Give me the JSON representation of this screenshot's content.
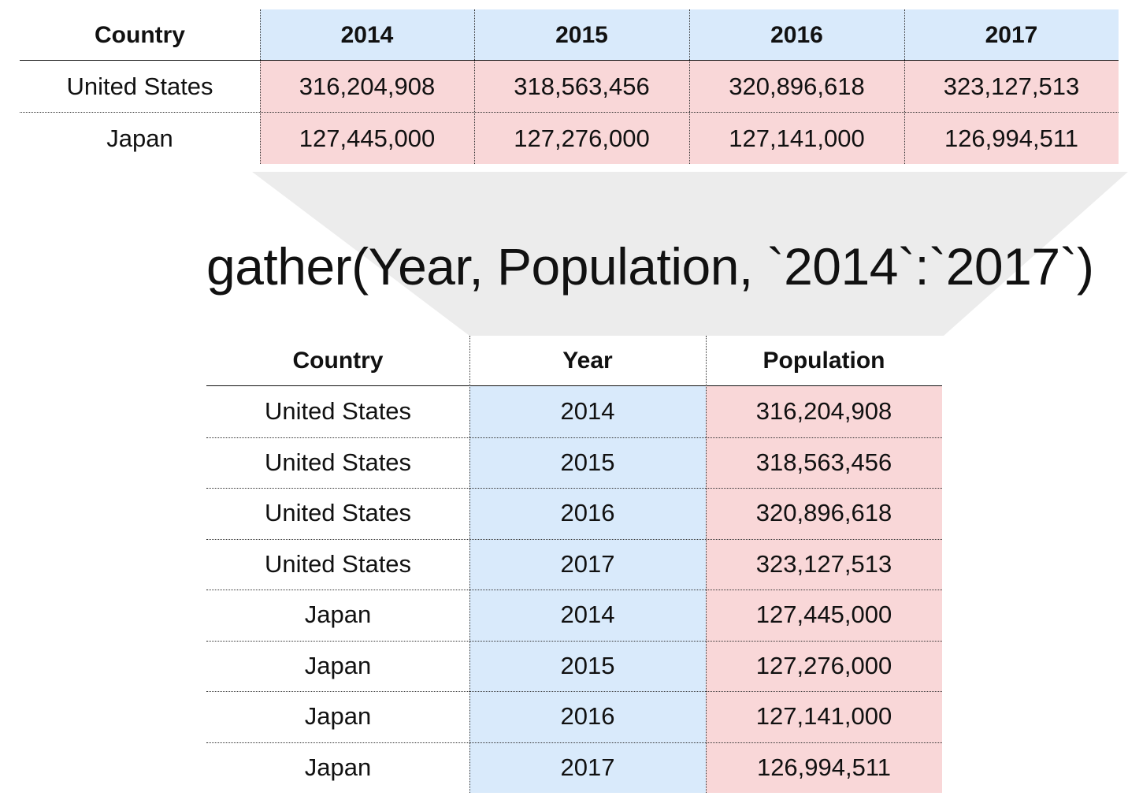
{
  "wide_table": {
    "headers": [
      "Country",
      "2014",
      "2015",
      "2016",
      "2017"
    ],
    "rows": [
      [
        "United States",
        "316,204,908",
        "318,563,456",
        "320,896,618",
        "323,127,513"
      ],
      [
        "Japan",
        "127,445,000",
        "127,276,000",
        "127,141,000",
        "126,994,511"
      ]
    ]
  },
  "formula": "gather(Year, Population, `2014`:`2017`)",
  "long_table": {
    "headers": [
      "Country",
      "Year",
      "Population"
    ],
    "rows": [
      [
        "United States",
        "2014",
        "316,204,908"
      ],
      [
        "United States",
        "2015",
        "318,563,456"
      ],
      [
        "United States",
        "2016",
        "320,896,618"
      ],
      [
        "United States",
        "2017",
        "323,127,513"
      ],
      [
        "Japan",
        "2014",
        "127,445,000"
      ],
      [
        "Japan",
        "2015",
        "127,276,000"
      ],
      [
        "Japan",
        "2016",
        "127,141,000"
      ],
      [
        "Japan",
        "2017",
        "126,994,511"
      ]
    ]
  },
  "colors": {
    "key_fill": "#d9eafb",
    "value_fill": "#f9d7d8",
    "funnel_fill": "#ececec"
  }
}
